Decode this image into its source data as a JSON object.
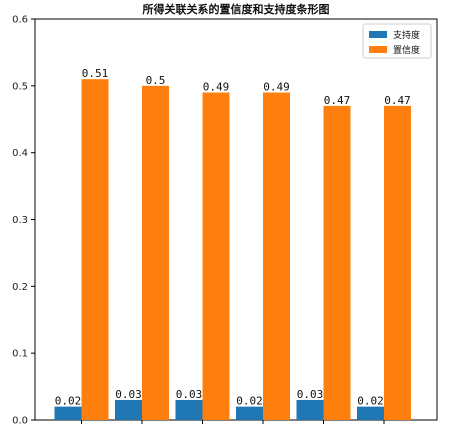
{
  "chart_data": {
    "type": "bar",
    "title": "所得关联关系的置信度和支持度条形图",
    "xlabel": "",
    "ylabel": "",
    "categories": [
      "",
      "",
      "",
      "",
      "",
      ""
    ],
    "ylim": [
      0,
      0.6
    ],
    "yticks": [
      "0.0",
      "0.1",
      "0.2",
      "0.3",
      "0.4",
      "0.5",
      "0.6"
    ],
    "grid": false,
    "legend_position": "top-right",
    "series": [
      {
        "name": "支持度",
        "color": "#1f77b4",
        "values": [
          0.02,
          0.03,
          0.03,
          0.02,
          0.03,
          0.02
        ],
        "labels": [
          "0.02",
          "0.03",
          "0.03",
          "0.02",
          "0.03",
          "0.02"
        ]
      },
      {
        "name": "置信度",
        "color": "#ff7f0e",
        "values": [
          0.51,
          0.5,
          0.49,
          0.49,
          0.47,
          0.47
        ],
        "labels": [
          "0.51",
          "0.5",
          "0.49",
          "0.49",
          "0.47",
          "0.47"
        ]
      }
    ]
  }
}
